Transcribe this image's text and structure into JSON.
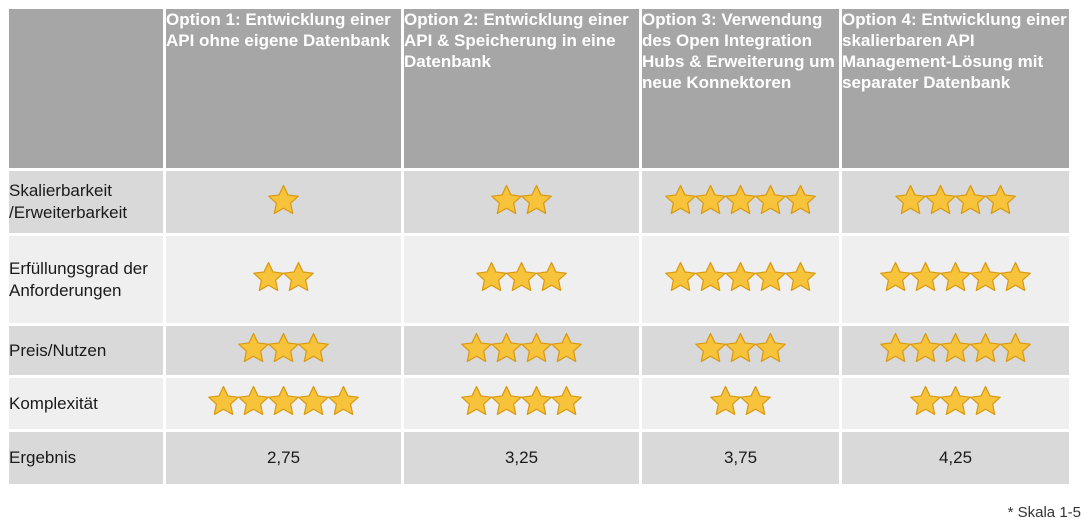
{
  "colors": {
    "header_bg": "#a6a6a6",
    "row_dark": "#d9d9d9",
    "row_light": "#efefef",
    "star_fill": "#f7c33a",
    "star_edge": "#d99a12"
  },
  "header": {
    "options": [
      "Option 1: Entwicklung einer API ohne eigene Datenbank",
      "Option 2: Entwicklung einer API & Speicherung in eine Datenbank",
      "Option 3: Verwendung des Open Integration Hubs & Erweiterung um neue Konnektoren",
      "Option 4: Entwicklung einer skalierbaren API Management-Lösung mit separater Datenbank"
    ]
  },
  "rows": [
    {
      "label": "Skalierbarkeit /Erweiterbarkeit",
      "ratings": [
        1,
        2,
        5,
        4
      ]
    },
    {
      "label": "Erfüllungsgrad der Anforderungen",
      "ratings": [
        2,
        3,
        5,
        5
      ]
    },
    {
      "label": "Preis/Nutzen",
      "ratings": [
        3,
        4,
        3,
        5
      ]
    },
    {
      "label": "Komplexität",
      "ratings": [
        5,
        4,
        2,
        3
      ]
    }
  ],
  "result": {
    "label": "Ergebnis",
    "values": [
      "2,75",
      "3,25",
      "3,75",
      "4,25"
    ]
  },
  "footnote": "* Skala 1-5"
}
